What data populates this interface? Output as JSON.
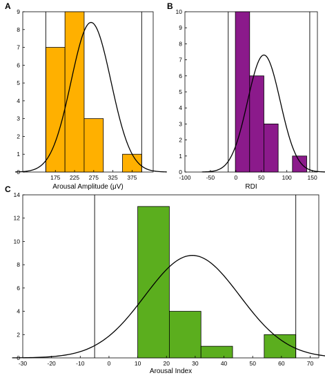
{
  "figure": {
    "panels": [
      {
        "letter": "A",
        "chart_data": {
          "type": "bar",
          "subtype": "histogram-with-normal-fit",
          "xlabel": "Arousal Amplitude (μV)",
          "xticks": [
            175,
            225,
            275,
            325,
            375
          ],
          "yticks": [
            0,
            1,
            2,
            3,
            4,
            5,
            6,
            7,
            8,
            9
          ],
          "xlim": [
            90,
            430
          ],
          "ylim": [
            0,
            9
          ],
          "bin_edges": [
            150,
            200,
            250,
            300,
            350,
            400
          ],
          "values": [
            7,
            9,
            3,
            0,
            1
          ],
          "normal_fit": {
            "mean": 268,
            "sd": 52,
            "peak": 8.4
          },
          "reference_lines_x": [
            150,
            400
          ],
          "bar_color": "#FFB000"
        }
      },
      {
        "letter": "B",
        "chart_data": {
          "type": "bar",
          "subtype": "histogram-with-normal-fit",
          "xlabel": "RDI",
          "xticks": [
            -100,
            -50,
            0,
            50,
            100,
            150
          ],
          "yticks": [
            0,
            1,
            2,
            3,
            4,
            5,
            6,
            7,
            8,
            9,
            10
          ],
          "xlim": [
            -100,
            160
          ],
          "ylim": [
            0,
            10
          ],
          "bin_edges": [
            -1,
            27,
            55,
            83,
            111,
            139
          ],
          "values": [
            10,
            6,
            3,
            0,
            1
          ],
          "normal_fit": {
            "mean": 55,
            "sd": 32,
            "peak": 7.3
          },
          "reference_lines_x": [
            -15,
            145
          ],
          "bar_color": "#8B1A8B"
        }
      },
      {
        "letter": "C",
        "chart_data": {
          "type": "bar",
          "subtype": "histogram-with-normal-fit",
          "xlabel": "Arousal Index",
          "xticks": [
            -30,
            -20,
            -10,
            0,
            10,
            20,
            30,
            40,
            50,
            60,
            70
          ],
          "yticks": [
            0,
            2,
            4,
            6,
            8,
            10,
            12,
            14
          ],
          "xlim": [
            -30,
            73
          ],
          "ylim": [
            0,
            14
          ],
          "bin_edges": [
            10,
            21,
            32,
            43,
            54,
            65
          ],
          "values": [
            13,
            4,
            1,
            0,
            2
          ],
          "normal_fit": {
            "mean": 29,
            "sd": 16.5,
            "peak": 8.8
          },
          "reference_lines_x": [
            -5,
            65
          ],
          "bar_color": "#5BAE1E"
        }
      }
    ]
  }
}
